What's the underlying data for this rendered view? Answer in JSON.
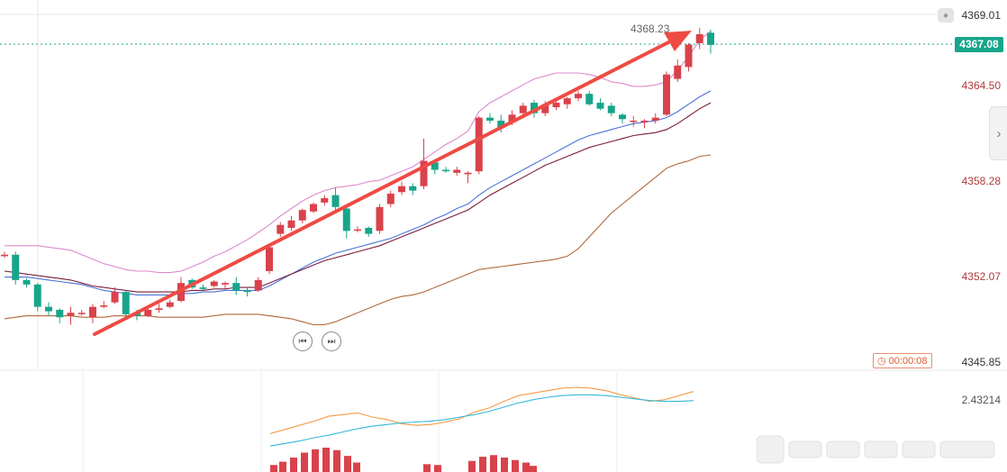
{
  "axis": {
    "labels": [
      "4369.01",
      "4364.50",
      "4358.28",
      "4352.07",
      "4345.85"
    ],
    "current_price": "4367.08",
    "high_label": "4368.23",
    "macd_value": "2.43214",
    "countdown": "00:00:08"
  },
  "colors": {
    "up": "#d9424b",
    "down": "#17a58a",
    "ma_pink": "#dd88cc",
    "ma_blue": "#4a72d8",
    "ma_dark": "#7a1c3a",
    "ma_brown": "#b0683a",
    "arrow": "#ee4b44",
    "dif": "#f59a45",
    "dea": "#35b8d8"
  },
  "icons": {
    "nav_prev": "skip-back-icon",
    "nav_next": "play-next-icon",
    "side": "chevron-right-icon",
    "bell": "bell-icon"
  },
  "chart_data": {
    "type": "candlestick",
    "ylim": [
      4345.85,
      4369.9
    ],
    "candles": [
      [
        4352.9,
        4353.2,
        4352.8,
        4353.0
      ],
      [
        4353.0,
        4353.2,
        4351.0,
        4351.3
      ],
      [
        4351.3,
        4351.4,
        4350.8,
        4351.0
      ],
      [
        4351.0,
        4351.1,
        4349.2,
        4349.5
      ],
      [
        4349.5,
        4349.8,
        4348.9,
        4349.2
      ],
      [
        4349.3,
        4349.4,
        4348.4,
        4348.8
      ],
      [
        4348.9,
        4349.5,
        4348.3,
        4349.1
      ],
      [
        4349.1,
        4349.3,
        4348.9,
        4349.1
      ],
      [
        4348.8,
        4349.7,
        4348.4,
        4349.5
      ],
      [
        4349.5,
        4349.9,
        4349.4,
        4349.6
      ],
      [
        4349.8,
        4350.8,
        4349.7,
        4350.5
      ],
      [
        4350.5,
        4350.6,
        4348.7,
        4349.0
      ],
      [
        4349.1,
        4349.3,
        4348.6,
        4348.9
      ],
      [
        4348.9,
        4349.5,
        4348.8,
        4349.3
      ],
      [
        4349.3,
        4349.7,
        4349.1,
        4349.4
      ],
      [
        4349.5,
        4350.0,
        4349.4,
        4349.8
      ],
      [
        4349.9,
        4351.5,
        4349.8,
        4351.1
      ],
      [
        4351.3,
        4351.4,
        4350.7,
        4350.8
      ],
      [
        4350.8,
        4351.0,
        4350.6,
        4350.7
      ],
      [
        4350.9,
        4351.3,
        4350.8,
        4351.2
      ],
      [
        4351.0,
        4351.2,
        4350.7,
        4351.1
      ],
      [
        4351.1,
        4351.5,
        4350.3,
        4350.6
      ],
      [
        4350.6,
        4350.8,
        4350.2,
        4350.5
      ],
      [
        4350.6,
        4351.5,
        4350.5,
        4351.3
      ],
      [
        4351.9,
        4353.6,
        4351.7,
        4353.5
      ],
      [
        4354.4,
        4355.2,
        4354.2,
        4355.0
      ],
      [
        4354.8,
        4355.6,
        4354.6,
        4355.3
      ],
      [
        4355.3,
        4356.1,
        4355.1,
        4356.0
      ],
      [
        4355.9,
        4356.5,
        4355.8,
        4356.4
      ],
      [
        4356.5,
        4357.0,
        4356.3,
        4356.8
      ],
      [
        4357.0,
        4357.5,
        4356.0,
        4356.2
      ],
      [
        4356.1,
        4356.3,
        4354.1,
        4354.6
      ],
      [
        4354.7,
        4354.9,
        4354.5,
        4354.7
      ],
      [
        4354.8,
        4354.9,
        4354.2,
        4354.4
      ],
      [
        4354.6,
        4356.4,
        4354.4,
        4356.2
      ],
      [
        4356.4,
        4357.3,
        4356.2,
        4357.1
      ],
      [
        4357.2,
        4357.9,
        4357.0,
        4357.6
      ],
      [
        4357.6,
        4357.8,
        4357.0,
        4357.3
      ],
      [
        4357.6,
        4360.8,
        4357.4,
        4359.3
      ],
      [
        4359.2,
        4359.4,
        4358.4,
        4358.7
      ],
      [
        4358.7,
        4358.9,
        4358.5,
        4358.6
      ],
      [
        4358.5,
        4358.9,
        4358.3,
        4358.7
      ],
      [
        4358.4,
        4358.6,
        4357.8,
        4358.5
      ],
      [
        4358.6,
        4362.3,
        4358.4,
        4362.2
      ],
      [
        4362.2,
        4362.5,
        4361.8,
        4362.0
      ],
      [
        4362.0,
        4362.4,
        4361.2,
        4361.5
      ],
      [
        4361.9,
        4362.7,
        4361.7,
        4362.4
      ],
      [
        4362.5,
        4363.2,
        4362.3,
        4363.0
      ],
      [
        4363.2,
        4363.4,
        4362.2,
        4362.5
      ],
      [
        4362.5,
        4363.3,
        4362.3,
        4363.1
      ],
      [
        4362.9,
        4363.3,
        4362.7,
        4363.2
      ],
      [
        4363.1,
        4363.6,
        4362.8,
        4363.5
      ],
      [
        4363.5,
        4364.0,
        4363.3,
        4363.8
      ],
      [
        4363.8,
        4364.0,
        4363.0,
        4363.1
      ],
      [
        4363.2,
        4363.5,
        4362.7,
        4362.8
      ],
      [
        4363.0,
        4363.2,
        4362.3,
        4362.5
      ],
      [
        4362.4,
        4362.5,
        4361.8,
        4362.1
      ],
      [
        4362.0,
        4362.3,
        4361.6,
        4362.0
      ],
      [
        4361.9,
        4362.1,
        4361.5,
        4362.0
      ],
      [
        4362.0,
        4362.5,
        4361.8,
        4362.2
      ],
      [
        4362.4,
        4365.3,
        4362.3,
        4365.1
      ],
      [
        4364.8,
        4366.1,
        4364.6,
        4365.7
      ],
      [
        4365.6,
        4367.2,
        4365.3,
        4367.1
      ],
      [
        4367.2,
        4368.23,
        4366.8,
        4367.8
      ],
      [
        4367.9,
        4368.1,
        4366.5,
        4367.08
      ]
    ],
    "ma_pink": [
      4353.6,
      4353.6,
      4353.6,
      4353.6,
      4353.5,
      4353.4,
      4353.3,
      4353.0,
      4352.7,
      4352.4,
      4352.2,
      4352.0,
      4351.9,
      4351.9,
      4351.8,
      4351.8,
      4351.9,
      4352.2,
      4352.5,
      4352.9,
      4353.2,
      4353.6,
      4354.0,
      4354.5,
      4355.0,
      4355.6,
      4356.1,
      4356.6,
      4357.0,
      4357.3,
      4357.5,
      4357.6,
      4357.7,
      4357.9,
      4358.0,
      4358.3,
      4358.6,
      4358.9,
      4359.4,
      4359.9,
      4360.4,
      4360.8,
      4361.3,
      4362.6,
      4363.2,
      4363.6,
      4364.0,
      4364.4,
      4364.8,
      4365.0,
      4365.2,
      4365.2,
      4365.2,
      4365.1,
      4364.9,
      4364.6,
      4364.5,
      4364.3,
      4364.3,
      4364.4,
      4364.6,
      4365.4,
      4366.3,
      4367.4,
      4368.0
    ],
    "ma_blue": [
      4351.5,
      4351.5,
      4351.5,
      4351.4,
      4351.3,
      4351.2,
      4351.1,
      4351.0,
      4350.8,
      4350.6,
      4350.5,
      4350.4,
      4350.3,
      4350.3,
      4350.3,
      4350.3,
      4350.4,
      4350.4,
      4350.5,
      4350.5,
      4350.6,
      4350.6,
      4350.6,
      4350.6,
      4350.9,
      4351.3,
      4351.7,
      4352.1,
      4352.5,
      4352.8,
      4353.1,
      4353.3,
      4353.5,
      4353.7,
      4353.9,
      4354.1,
      4354.4,
      4354.7,
      4355.0,
      4355.4,
      4355.7,
      4356.1,
      4356.4,
      4357.0,
      4357.5,
      4357.9,
      4358.3,
      4358.7,
      4359.1,
      4359.5,
      4359.9,
      4360.3,
      4360.7,
      4361.0,
      4361.2,
      4361.4,
      4361.6,
      4361.8,
      4361.9,
      4362.0,
      4362.2,
      4362.6,
      4363.1,
      4363.6,
      4364.0
    ],
    "ma_dark": [
      4351.9,
      4351.8,
      4351.7,
      4351.6,
      4351.5,
      4351.4,
      4351.3,
      4351.1,
      4350.9,
      4350.8,
      4350.7,
      4350.6,
      4350.5,
      4350.5,
      4350.5,
      4350.5,
      4350.5,
      4350.6,
      4350.6,
      4350.7,
      4350.7,
      4350.8,
      4350.8,
      4350.8,
      4351.1,
      4351.4,
      4351.7,
      4352.0,
      4352.3,
      4352.6,
      4352.8,
      4353.0,
      4353.2,
      4353.4,
      4353.6,
      4353.9,
      4354.2,
      4354.5,
      4354.8,
      4355.1,
      4355.4,
      4355.7,
      4356.0,
      4356.5,
      4357.0,
      4357.4,
      4357.8,
      4358.2,
      4358.6,
      4359.0,
      4359.3,
      4359.6,
      4359.9,
      4360.2,
      4360.4,
      4360.6,
      4360.8,
      4361.0,
      4361.1,
      4361.2,
      4361.4,
      4361.8,
      4362.3,
      4362.8,
      4363.2
    ],
    "ma_brown": [
      4348.7,
      4348.8,
      4348.9,
      4348.9,
      4348.9,
      4348.9,
      4348.9,
      4348.8,
      4348.8,
      4348.8,
      4348.9,
      4348.9,
      4348.9,
      4348.9,
      4348.8,
      4348.8,
      4348.8,
      4348.8,
      4348.8,
      4348.9,
      4349.0,
      4349.0,
      4349.0,
      4349.0,
      4348.9,
      4348.8,
      4348.7,
      4348.5,
      4348.3,
      4348.3,
      4348.5,
      4348.8,
      4349.1,
      4349.4,
      4349.7,
      4350.0,
      4350.2,
      4350.3,
      4350.5,
      4350.8,
      4351.1,
      4351.4,
      4351.7,
      4352.0,
      4352.1,
      4352.2,
      4352.3,
      4352.4,
      4352.5,
      4352.6,
      4352.7,
      4352.9,
      4353.4,
      4354.2,
      4355.0,
      4355.8,
      4356.4,
      4357.0,
      4357.6,
      4358.2,
      4358.8,
      4359.1,
      4359.3,
      4359.6,
      4359.7
    ],
    "dif": [
      2.05,
      2.3,
      2.55,
      2.8,
      3.1,
      3.2,
      3.3,
      3.05,
      2.9,
      2.65,
      2.55,
      2.6,
      2.75,
      2.95,
      3.35,
      3.6,
      4.0,
      4.35,
      4.5,
      4.65,
      4.8,
      4.85,
      4.8,
      4.65,
      4.4,
      4.2,
      4.0,
      4.1,
      4.35,
      4.6
    ],
    "dea": [
      1.3,
      1.45,
      1.6,
      1.8,
      1.95,
      2.15,
      2.35,
      2.5,
      2.6,
      2.7,
      2.75,
      2.8,
      2.9,
      3.05,
      3.2,
      3.4,
      3.65,
      3.9,
      4.1,
      4.25,
      4.35,
      4.4,
      4.4,
      4.35,
      4.25,
      4.15,
      4.05,
      4.0,
      4.0,
      4.05
    ],
    "macd_hist": [
      [
        300,
        0.15
      ],
      [
        310,
        0.35
      ],
      [
        322,
        0.6
      ],
      [
        334,
        0.9
      ],
      [
        346,
        1.1
      ],
      [
        358,
        1.2
      ],
      [
        370,
        1.05
      ],
      [
        382,
        0.7
      ],
      [
        392,
        0.3
      ],
      [
        470,
        0.2
      ],
      [
        482,
        0.15
      ],
      [
        520,
        0.4
      ],
      [
        532,
        0.65
      ],
      [
        544,
        0.75
      ],
      [
        556,
        0.6
      ],
      [
        568,
        0.45
      ],
      [
        580,
        0.3
      ],
      [
        588,
        0.1
      ]
    ]
  }
}
